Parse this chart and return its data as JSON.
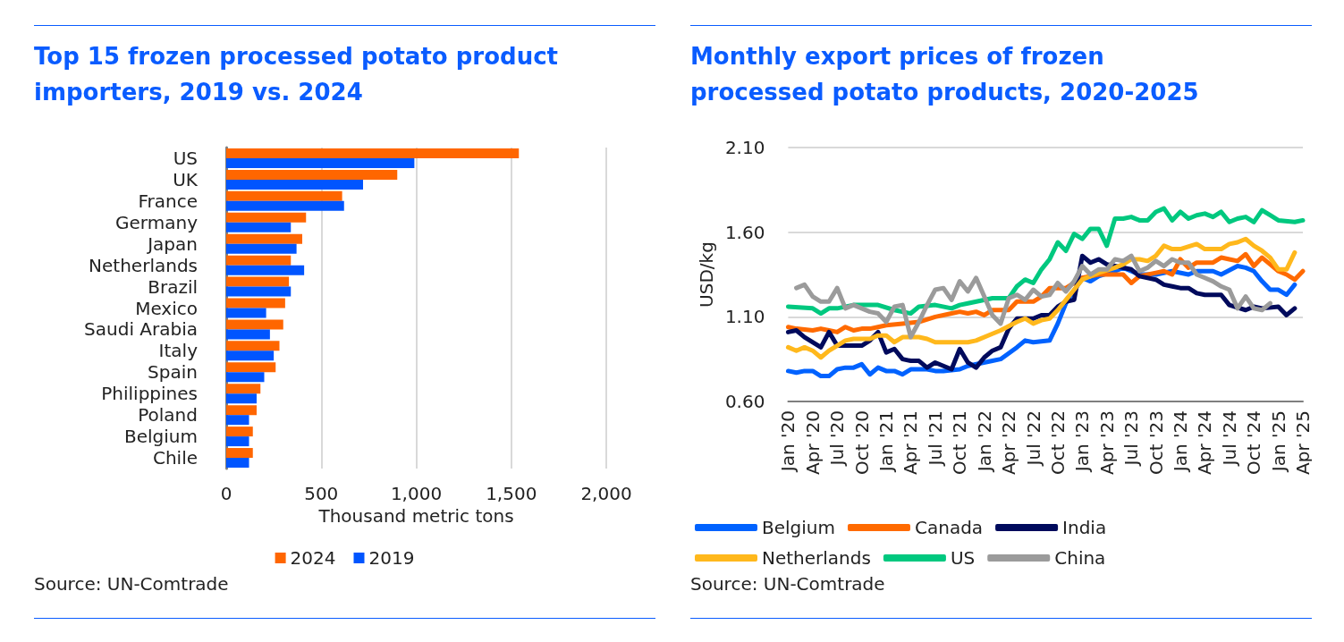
{
  "chart_data": [
    {
      "type": "bar",
      "orientation": "horizontal",
      "title": "Top 15 frozen processed potato product importers, 2019 vs. 2024",
      "categories": [
        "US",
        "UK",
        "France",
        "Germany",
        "Japan",
        "Netherlands",
        "Brazil",
        "Mexico",
        "Saudi Arabia",
        "Italy",
        "Spain",
        "Philippines",
        "Poland",
        "Belgium",
        "Chile"
      ],
      "series": [
        {
          "name": "2024",
          "color": "#ff6600",
          "values": [
            1540,
            900,
            610,
            420,
            400,
            340,
            330,
            310,
            300,
            280,
            260,
            180,
            160,
            140,
            140
          ]
        },
        {
          "name": "2019",
          "color": "#0055ff",
          "values": [
            990,
            720,
            620,
            340,
            370,
            410,
            340,
            210,
            230,
            250,
            200,
            160,
            120,
            120,
            120
          ]
        }
      ],
      "xlim": [
        0,
        2000
      ],
      "xticks": [
        0,
        500,
        {
          "value": 1000,
          "label": "1,000"
        },
        {
          "value": 1500,
          "label": "1,500"
        },
        {
          "value": 2000,
          "label": "2,000"
        }
      ],
      "xlabel": "Thousand metric tons",
      "grid": "x",
      "legend": "bottom",
      "annotations": [
        "Source: UN-Comtrade"
      ]
    },
    {
      "type": "line",
      "title": "Monthly export prices of frozen processed potato products, 2020-2025",
      "ylabel": "USD/kg",
      "marker": "none",
      "line_style": "solid",
      "grid": "y",
      "legend": "bottom",
      "annotations": [
        "Source: UN-Comtrade"
      ],
      "xlim": [
        "2020-01",
        "2025-04"
      ],
      "xticks": [
        {
          "value": "2020-01",
          "label": "Jan '20"
        },
        {
          "value": "2020-04",
          "label": "Apr '20"
        },
        {
          "value": "2020-07",
          "label": "Jul '20"
        },
        {
          "value": "2020-10",
          "label": "Oct '20"
        },
        {
          "value": "2021-01",
          "label": "Jan '21"
        },
        {
          "value": "2021-04",
          "label": "Apr '21"
        },
        {
          "value": "2021-07",
          "label": "Jul '21"
        },
        {
          "value": "2021-10",
          "label": "Oct '21"
        },
        {
          "value": "2022-01",
          "label": "Jan '22"
        },
        {
          "value": "2022-04",
          "label": "Apr '22"
        },
        {
          "value": "2022-07",
          "label": "Jul '22"
        },
        {
          "value": "2022-10",
          "label": "Oct '22"
        },
        {
          "value": "2023-01",
          "label": "Jan '23"
        },
        {
          "value": "2023-04",
          "label": "Apr '23"
        },
        {
          "value": "2023-07",
          "label": "Jul '23"
        },
        {
          "value": "2023-10",
          "label": "Oct '23"
        },
        {
          "value": "2024-01",
          "label": "Jan '24"
        },
        {
          "value": "2024-04",
          "label": "Apr '24"
        },
        {
          "value": "2024-07",
          "label": "Jul '24"
        },
        {
          "value": "2024-10",
          "label": "Oct '24"
        },
        {
          "value": "2025-01",
          "label": "Jan '25"
        },
        {
          "value": "2025-04",
          "label": "Apr '25"
        }
      ],
      "ylim": [
        0.6,
        2.1
      ],
      "yticks": [
        {
          "value": 0.6,
          "label": "0.60"
        },
        {
          "value": 1.1,
          "label": "1.10"
        },
        {
          "value": 1.6,
          "label": "1.60"
        },
        {
          "value": 2.1,
          "label": "2.10"
        }
      ],
      "series": [
        {
          "name": "Belgium",
          "color": "#0062ff",
          "x": [
            "2020-01",
            "2020-02",
            "2020-03",
            "2020-04",
            "2020-05",
            "2020-06",
            "2020-07",
            "2020-08",
            "2020-09",
            "2020-10",
            "2020-11",
            "2020-12",
            "2021-01",
            "2021-02",
            "2021-03",
            "2021-04",
            "2021-06",
            "2021-07",
            "2021-08",
            "2021-10",
            "2021-11",
            "2022-02",
            "2022-03",
            "2022-05",
            "2022-06",
            "2022-07",
            "2022-09",
            "2022-10",
            "2022-11",
            "2023-01",
            "2023-02",
            "2023-03",
            "2023-05",
            "2023-06",
            "2023-08",
            "2023-10",
            "2023-12",
            "2024-02",
            "2024-03",
            "2024-05",
            "2024-06",
            "2024-08",
            "2024-09",
            "2024-10",
            "2024-11",
            "2024-12",
            "2025-01",
            "2025-02",
            "2025-03"
          ],
          "values": [
            0.78,
            0.77,
            0.78,
            0.78,
            0.75,
            0.75,
            0.79,
            0.8,
            0.8,
            0.82,
            0.76,
            0.8,
            0.78,
            0.78,
            0.76,
            0.79,
            0.79,
            0.78,
            0.78,
            0.79,
            0.81,
            0.84,
            0.85,
            0.92,
            0.96,
            0.95,
            0.96,
            1.06,
            1.18,
            1.33,
            1.31,
            1.34,
            1.37,
            1.39,
            1.35,
            1.35,
            1.37,
            1.35,
            1.37,
            1.37,
            1.35,
            1.4,
            1.39,
            1.37,
            1.31,
            1.26,
            1.26,
            1.23,
            1.29
          ]
        },
        {
          "name": "Canada",
          "color": "#ff6a00",
          "x": [
            "2020-01",
            "2020-02",
            "2020-04",
            "2020-05",
            "2020-06",
            "2020-07",
            "2020-08",
            "2020-09",
            "2020-10",
            "2020-11",
            "2020-12",
            "2021-01",
            "2021-03",
            "2021-05",
            "2021-07",
            "2021-09",
            "2021-10",
            "2021-11",
            "2021-12",
            "2022-01",
            "2022-02",
            "2022-04",
            "2022-05",
            "2022-07",
            "2022-08",
            "2022-09",
            "2022-11",
            "2022-12",
            "2023-01",
            "2023-03",
            "2023-04",
            "2023-06",
            "2023-07",
            "2023-08",
            "2023-10",
            "2023-11",
            "2023-12",
            "2024-01",
            "2024-02",
            "2024-03",
            "2024-05",
            "2024-06",
            "2024-07",
            "2024-08",
            "2024-09",
            "2024-10",
            "2024-11",
            "2024-12",
            "2025-01",
            "2025-02",
            "2025-03",
            "2025-04"
          ],
          "values": [
            1.04,
            1.03,
            1.02,
            1.03,
            1.02,
            1.01,
            1.04,
            1.02,
            1.03,
            1.03,
            1.04,
            1.05,
            1.06,
            1.07,
            1.1,
            1.12,
            1.13,
            1.12,
            1.13,
            1.11,
            1.14,
            1.14,
            1.19,
            1.19,
            1.22,
            1.27,
            1.27,
            1.3,
            1.33,
            1.35,
            1.35,
            1.35,
            1.3,
            1.34,
            1.36,
            1.37,
            1.35,
            1.44,
            1.39,
            1.42,
            1.42,
            1.45,
            1.44,
            1.43,
            1.47,
            1.4,
            1.45,
            1.41,
            1.37,
            1.35,
            1.32,
            1.37
          ]
        },
        {
          "name": "India",
          "color": "#000a5c",
          "x": [
            "2020-01",
            "2020-02",
            "2020-03",
            "2020-05",
            "2020-06",
            "2020-07",
            "2020-08",
            "2020-10",
            "2020-11",
            "2020-12",
            "2021-01",
            "2021-02",
            "2021-03",
            "2021-04",
            "2021-05",
            "2021-06",
            "2021-07",
            "2021-08",
            "2021-09",
            "2021-10",
            "2021-11",
            "2021-12",
            "2022-01",
            "2022-02",
            "2022-03",
            "2022-04",
            "2022-05",
            "2022-07",
            "2022-08",
            "2022-09",
            "2022-10",
            "2022-11",
            "2022-12",
            "2023-01",
            "2023-02",
            "2023-03",
            "2023-04",
            "2023-05",
            "2023-07",
            "2023-08",
            "2023-10",
            "2023-11",
            "2023-12",
            "2024-01",
            "2024-02",
            "2024-03",
            "2024-04",
            "2024-06",
            "2024-07",
            "2024-09",
            "2024-10",
            "2024-11",
            "2025-01",
            "2025-02",
            "2025-03"
          ],
          "values": [
            1.01,
            1.02,
            0.98,
            0.92,
            1.01,
            0.93,
            0.93,
            0.93,
            0.96,
            1.01,
            0.89,
            0.91,
            0.85,
            0.84,
            0.84,
            0.8,
            0.83,
            0.81,
            0.79,
            0.91,
            0.83,
            0.8,
            0.86,
            0.9,
            0.92,
            1.03,
            1.09,
            1.09,
            1.11,
            1.11,
            1.16,
            1.19,
            1.2,
            1.46,
            1.42,
            1.44,
            1.41,
            1.4,
            1.38,
            1.34,
            1.32,
            1.29,
            1.28,
            1.27,
            1.27,
            1.24,
            1.23,
            1.23,
            1.17,
            1.14,
            1.16,
            1.15,
            1.16,
            1.11,
            1.15
          ]
        },
        {
          "name": "Netherlands",
          "color": "#ffb81c",
          "x": [
            "2020-01",
            "2020-02",
            "2020-03",
            "2020-04",
            "2020-05",
            "2020-06",
            "2020-07",
            "2020-08",
            "2020-09",
            "2020-11",
            "2020-12",
            "2021-01",
            "2021-02",
            "2021-03",
            "2021-05",
            "2021-06",
            "2021-07",
            "2021-09",
            "2021-11",
            "2021-12",
            "2022-02",
            "2022-03",
            "2022-05",
            "2022-06",
            "2022-07",
            "2022-08",
            "2022-09",
            "2022-10",
            "2022-11",
            "2022-12",
            "2023-01",
            "2023-03",
            "2023-05",
            "2023-06",
            "2023-07",
            "2023-08",
            "2023-09",
            "2023-10",
            "2023-11",
            "2023-12",
            "2024-01",
            "2024-03",
            "2024-04",
            "2024-06",
            "2024-07",
            "2024-08",
            "2024-09",
            "2024-10",
            "2024-11",
            "2024-12",
            "2025-01",
            "2025-02",
            "2025-03"
          ],
          "values": [
            0.92,
            0.9,
            0.92,
            0.9,
            0.86,
            0.9,
            0.93,
            0.96,
            0.97,
            0.97,
            0.99,
            0.99,
            0.95,
            0.98,
            0.98,
            0.97,
            0.95,
            0.95,
            0.95,
            0.96,
            1.0,
            1.02,
            1.07,
            1.09,
            1.06,
            1.08,
            1.09,
            1.14,
            1.2,
            1.26,
            1.32,
            1.36,
            1.39,
            1.41,
            1.44,
            1.44,
            1.43,
            1.46,
            1.52,
            1.5,
            1.5,
            1.53,
            1.5,
            1.5,
            1.53,
            1.54,
            1.56,
            1.52,
            1.49,
            1.45,
            1.38,
            1.38,
            1.48
          ]
        },
        {
          "name": "US",
          "color": "#00c87f",
          "x": [
            "2020-01",
            "2020-04",
            "2020-05",
            "2020-06",
            "2020-07",
            "2020-09",
            "2020-12",
            "2021-02",
            "2021-04",
            "2021-05",
            "2021-07",
            "2021-09",
            "2021-10",
            "2021-11",
            "2022-02",
            "2022-04",
            "2022-05",
            "2022-06",
            "2022-07",
            "2022-08",
            "2022-09",
            "2022-10",
            "2022-11",
            "2022-12",
            "2023-01",
            "2023-02",
            "2023-03",
            "2023-04",
            "2023-05",
            "2023-06",
            "2023-07",
            "2023-08",
            "2023-09",
            "2023-10",
            "2023-11",
            "2023-12",
            "2024-01",
            "2024-02",
            "2024-03",
            "2024-04",
            "2024-05",
            "2024-06",
            "2024-07",
            "2024-08",
            "2024-09",
            "2024-10",
            "2024-11",
            "2024-12",
            "2025-01",
            "2025-03",
            "2025-04"
          ],
          "values": [
            1.16,
            1.15,
            1.12,
            1.15,
            1.15,
            1.17,
            1.17,
            1.14,
            1.12,
            1.16,
            1.17,
            1.15,
            1.17,
            1.18,
            1.21,
            1.21,
            1.28,
            1.32,
            1.3,
            1.38,
            1.44,
            1.54,
            1.49,
            1.59,
            1.56,
            1.62,
            1.62,
            1.52,
            1.68,
            1.68,
            1.69,
            1.67,
            1.67,
            1.72,
            1.74,
            1.67,
            1.72,
            1.68,
            1.7,
            1.71,
            1.69,
            1.72,
            1.66,
            1.68,
            1.69,
            1.66,
            1.73,
            1.7,
            1.67,
            1.66,
            1.67
          ]
        },
        {
          "name": "China",
          "color": "#9b9b9b",
          "x": [
            "2020-02",
            "2020-03",
            "2020-04",
            "2020-05",
            "2020-06",
            "2020-07",
            "2020-08",
            "2020-09",
            "2020-10",
            "2020-11",
            "2020-12",
            "2021-01",
            "2021-02",
            "2021-03",
            "2021-04",
            "2021-05",
            "2021-06",
            "2021-07",
            "2021-08",
            "2021-09",
            "2021-10",
            "2021-11",
            "2021-12",
            "2022-01",
            "2022-02",
            "2022-03",
            "2022-04",
            "2022-05",
            "2022-06",
            "2022-07",
            "2022-08",
            "2022-09",
            "2022-10",
            "2022-11",
            "2022-12",
            "2023-01",
            "2023-02",
            "2023-03",
            "2023-04",
            "2023-05",
            "2023-06",
            "2023-07",
            "2023-08",
            "2023-09",
            "2023-10",
            "2023-11",
            "2023-12",
            "2024-01",
            "2024-02",
            "2024-03",
            "2024-04",
            "2024-05",
            "2024-06",
            "2024-07",
            "2024-08",
            "2024-09",
            "2024-10",
            "2024-11",
            "2024-12"
          ],
          "values": [
            1.27,
            1.29,
            1.22,
            1.19,
            1.19,
            1.27,
            1.15,
            1.17,
            1.15,
            1.13,
            1.12,
            1.07,
            1.16,
            1.17,
            0.98,
            1.07,
            1.17,
            1.26,
            1.27,
            1.2,
            1.31,
            1.25,
            1.33,
            1.22,
            1.11,
            1.06,
            1.21,
            1.23,
            1.2,
            1.26,
            1.22,
            1.23,
            1.3,
            1.25,
            1.31,
            1.4,
            1.35,
            1.38,
            1.38,
            1.44,
            1.43,
            1.46,
            1.37,
            1.39,
            1.43,
            1.4,
            1.44,
            1.42,
            1.42,
            1.35,
            1.33,
            1.31,
            1.28,
            1.26,
            1.15,
            1.22,
            1.15,
            1.14,
            1.18
          ]
        }
      ]
    }
  ]
}
